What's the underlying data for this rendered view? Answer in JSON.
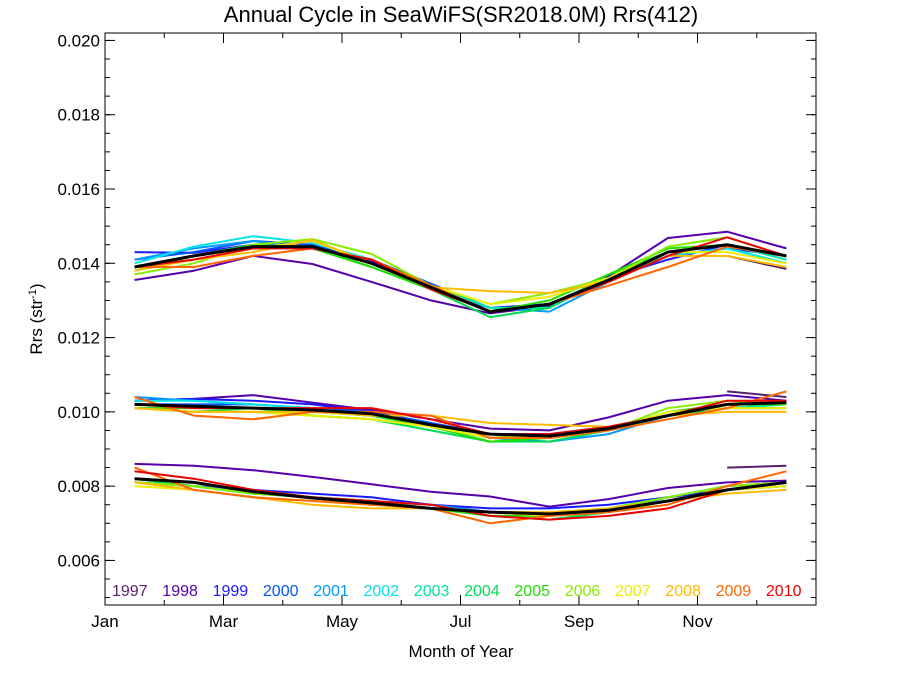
{
  "chart_data": {
    "type": "line",
    "title": "Annual Cycle in SeaWiFS(SR2018.0M) Rrs(412)",
    "xlabel": "Month of Year",
    "ylabel": "Rrs (str",
    "ylabel_sup": "-1",
    "ylabel_close": ")",
    "xlim": [
      1,
      13
    ],
    "ylim": [
      0.0048,
      0.0202
    ],
    "x_ticks": [
      {
        "value": 1,
        "label": "Jan"
      },
      {
        "value": 3,
        "label": "Mar"
      },
      {
        "value": 5,
        "label": "May"
      },
      {
        "value": 7,
        "label": "Jul"
      },
      {
        "value": 9,
        "label": "Sep"
      },
      {
        "value": 11,
        "label": "Nov"
      }
    ],
    "y_ticks": [
      {
        "value": 0.006,
        "label": "0.006"
      },
      {
        "value": 0.008,
        "label": "0.008"
      },
      {
        "value": 0.01,
        "label": "0.010"
      },
      {
        "value": 0.012,
        "label": "0.012"
      },
      {
        "value": 0.014,
        "label": "0.014"
      },
      {
        "value": 0.016,
        "label": "0.016"
      },
      {
        "value": 0.018,
        "label": "0.018"
      },
      {
        "value": 0.02,
        "label": "0.020"
      }
    ],
    "grid": false,
    "legend_position": "bottom-inside",
    "x": [
      1.5,
      2.5,
      3.5,
      4.5,
      5.5,
      6.5,
      7.5,
      8.5,
      9.5,
      10.5,
      11.5,
      12.5
    ],
    "series": [
      {
        "name": "1997",
        "color": "#5a1f6b",
        "groups": [
          [
            null,
            null,
            null,
            null,
            null,
            null,
            null,
            null,
            null,
            null,
            0.0142,
            0.01385
          ],
          [
            null,
            null,
            null,
            null,
            null,
            null,
            null,
            null,
            null,
            null,
            0.01055,
            0.0104
          ],
          [
            null,
            null,
            null,
            null,
            null,
            null,
            null,
            null,
            null,
            null,
            0.0085,
            0.00855
          ]
        ]
      },
      {
        "name": "1998",
        "color": "#5500aa",
        "groups": [
          [
            0.01355,
            0.0138,
            0.0142,
            0.01398,
            0.0135,
            0.013,
            0.01265,
            0.01285,
            0.01365,
            0.01468,
            0.01485,
            0.0144
          ],
          [
            0.0103,
            0.01035,
            0.01045,
            0.01025,
            0.01005,
            0.0098,
            0.00955,
            0.0095,
            0.00985,
            0.0103,
            0.01045,
            0.0103
          ],
          [
            0.0086,
            0.00855,
            0.00843,
            0.00825,
            0.00805,
            0.00785,
            0.00772,
            0.00745,
            0.00765,
            0.00795,
            0.0081,
            0.00815
          ]
        ]
      },
      {
        "name": "1999",
        "color": "#1a1aff",
        "groups": [
          [
            0.0143,
            0.01428,
            0.0145,
            0.01445,
            0.01405,
            0.0133,
            0.0128,
            0.0129,
            0.0136,
            0.0141,
            0.0145,
            0.0142
          ],
          [
            0.0103,
            0.01035,
            0.0103,
            0.0102,
            0.01,
            0.0097,
            0.0094,
            0.0094,
            0.0096,
            0.0099,
            0.0102,
            0.0102
          ],
          [
            0.0082,
            0.008,
            0.0079,
            0.0078,
            0.0077,
            0.0075,
            0.0074,
            0.0074,
            0.0075,
            0.0077,
            0.0079,
            0.008
          ]
        ]
      },
      {
        "name": "2000",
        "color": "#0055ff",
        "groups": [
          [
            0.0141,
            0.0143,
            0.0146,
            0.0145,
            0.0141,
            0.01345,
            0.0128,
            0.0128,
            0.0136,
            0.0142,
            0.0144,
            0.0142
          ],
          [
            0.0102,
            0.0102,
            0.0102,
            0.0101,
            0.01,
            0.0097,
            0.0094,
            0.0093,
            0.0095,
            0.0099,
            0.0101,
            0.0101
          ],
          [
            0.0081,
            0.008,
            0.0078,
            0.0077,
            0.0076,
            0.0075,
            0.0073,
            0.0072,
            0.0073,
            0.0076,
            0.0079,
            0.0081
          ]
        ]
      },
      {
        "name": "2001",
        "color": "#0099ff",
        "groups": [
          [
            0.0141,
            0.0144,
            0.0146,
            0.0144,
            0.014,
            0.0134,
            0.0128,
            0.0127,
            0.0135,
            0.0142,
            0.0144,
            0.014
          ],
          [
            0.0104,
            0.0103,
            0.0102,
            0.0101,
            0.0099,
            0.0096,
            0.0093,
            0.0092,
            0.0094,
            0.0099,
            0.0101,
            0.0102
          ],
          [
            0.0082,
            0.0081,
            0.0078,
            0.0077,
            0.0076,
            0.0075,
            0.0073,
            0.0072,
            0.0073,
            0.0077,
            0.008,
            0.0081
          ]
        ]
      },
      {
        "name": "2002",
        "color": "#00e5e5",
        "groups": [
          [
            0.014,
            0.01445,
            0.01473,
            0.01455,
            0.0141,
            0.0134,
            0.0128,
            0.0128,
            0.0136,
            0.0142,
            0.0144,
            0.014
          ],
          [
            0.0103,
            0.0103,
            0.0102,
            0.0101,
            0.0099,
            0.0096,
            0.0093,
            0.0093,
            0.0095,
            0.0099,
            0.0101,
            0.0102
          ],
          [
            0.0082,
            0.008,
            0.0078,
            0.0077,
            0.0076,
            0.0074,
            0.0073,
            0.0072,
            0.0073,
            0.0076,
            0.0079,
            0.0081
          ]
        ]
      },
      {
        "name": "2003",
        "color": "#00e5a0",
        "groups": [
          [
            0.0138,
            0.0142,
            0.0145,
            0.0144,
            0.014,
            0.0134,
            0.0128,
            0.0128,
            0.0136,
            0.0143,
            0.0145,
            0.0141
          ],
          [
            0.0101,
            0.0101,
            0.0101,
            0.01,
            0.0099,
            0.0096,
            0.0093,
            0.0093,
            0.0095,
            0.0099,
            0.0101,
            0.0102
          ],
          [
            0.0081,
            0.008,
            0.0078,
            0.0077,
            0.0076,
            0.0074,
            0.0073,
            0.0072,
            0.0073,
            0.0076,
            0.0079,
            0.008
          ]
        ]
      },
      {
        "name": "2004",
        "color": "#00dd55",
        "groups": [
          [
            0.0139,
            0.0141,
            0.0144,
            0.0144,
            0.0139,
            0.0133,
            0.01255,
            0.0128,
            0.0137,
            0.0143,
            0.0145,
            0.0142
          ],
          [
            0.0101,
            0.01,
            0.0101,
            0.0099,
            0.0098,
            0.0095,
            0.0092,
            0.0092,
            0.0095,
            0.0099,
            0.0101,
            0.0101
          ],
          [
            0.0082,
            0.008,
            0.0078,
            0.0077,
            0.0075,
            0.0074,
            0.0072,
            0.0071,
            0.0073,
            0.0076,
            0.0079,
            0.0081
          ]
        ]
      },
      {
        "name": "2005",
        "color": "#22dd00",
        "groups": [
          [
            0.0139,
            0.0142,
            0.0145,
            0.0144,
            0.0139,
            0.0133,
            0.0127,
            0.013,
            0.0137,
            0.0144,
            0.0145,
            0.0142
          ],
          [
            0.0101,
            0.0101,
            0.0101,
            0.01,
            0.0099,
            0.0096,
            0.0092,
            0.0093,
            0.0095,
            0.01,
            0.0102,
            0.0102
          ],
          [
            0.0081,
            0.008,
            0.0078,
            0.0077,
            0.0076,
            0.0074,
            0.0072,
            0.0072,
            0.0074,
            0.0077,
            0.008,
            0.0081
          ]
        ]
      },
      {
        "name": "2006",
        "color": "#88ee00",
        "groups": [
          [
            0.0137,
            0.014,
            0.0145,
            0.01465,
            0.01425,
            0.0134,
            0.0129,
            0.0132,
            0.0136,
            0.01445,
            0.0147,
            0.0142
          ],
          [
            0.0101,
            0.01,
            0.01,
            0.0099,
            0.0098,
            0.0096,
            0.0093,
            0.0094,
            0.0095,
            0.0101,
            0.0103,
            0.0102
          ],
          [
            0.0081,
            0.008,
            0.0078,
            0.0077,
            0.0075,
            0.0074,
            0.0073,
            0.0072,
            0.0074,
            0.0077,
            0.008,
            0.0081
          ]
        ]
      },
      {
        "name": "2007",
        "color": "#eeee00",
        "groups": [
          [
            0.0138,
            0.0141,
            0.0144,
            0.0146,
            0.014,
            0.0134,
            0.0129,
            0.0131,
            0.0136,
            0.0143,
            0.0143,
            0.014
          ],
          [
            0.0101,
            0.01,
            0.01,
            0.0099,
            0.0098,
            0.0096,
            0.0093,
            0.0093,
            0.0095,
            0.01,
            0.0101,
            0.0101
          ],
          [
            0.008,
            0.0079,
            0.0077,
            0.0076,
            0.0075,
            0.0074,
            0.0073,
            0.0072,
            0.0073,
            0.0076,
            0.0079,
            0.008
          ]
        ]
      },
      {
        "name": "2008",
        "color": "#ffbb00",
        "groups": [
          [
            0.0138,
            0.0141,
            0.0143,
            0.01463,
            0.014,
            0.01335,
            0.01325,
            0.0132,
            0.0135,
            0.0142,
            0.0142,
            0.0139
          ],
          [
            0.0101,
            0.01,
            0.01,
            0.01,
            0.0099,
            0.0099,
            0.0097,
            0.00965,
            0.0096,
            0.0099,
            0.01,
            0.01
          ],
          [
            0.0081,
            0.0079,
            0.0077,
            0.0075,
            0.0074,
            0.0074,
            0.0073,
            0.0073,
            0.0074,
            0.0076,
            0.0078,
            0.0079
          ]
        ]
      },
      {
        "name": "2009",
        "color": "#ff6600",
        "groups": [
          [
            0.0139,
            0.0139,
            0.0142,
            0.0144,
            0.0141,
            0.0134,
            0.0127,
            0.0129,
            0.0134,
            0.0139,
            0.01445,
            0.0142
          ],
          [
            0.0104,
            0.0099,
            0.0098,
            0.01,
            0.01,
            0.0099,
            0.0093,
            0.0093,
            0.0095,
            0.0098,
            0.0101,
            0.01055
          ],
          [
            0.0085,
            0.0079,
            0.0077,
            0.0076,
            0.0075,
            0.0074,
            0.007,
            0.0072,
            0.0073,
            0.0075,
            0.008,
            0.0084
          ]
        ]
      },
      {
        "name": "2010",
        "color": "#ee0000",
        "groups": [
          [
            0.0139,
            0.0141,
            0.0144,
            0.0144,
            0.0141,
            0.0133,
            0.0127,
            0.0129,
            0.0135,
            0.0142,
            0.0147,
            0.0142
          ],
          [
            0.0102,
            0.0101,
            0.0101,
            0.0101,
            0.0101,
            0.0098,
            0.0094,
            0.0094,
            0.0096,
            0.0099,
            0.0103,
            0.0103
          ],
          [
            0.0084,
            0.0082,
            0.0079,
            0.0077,
            0.0076,
            0.0075,
            0.0072,
            0.0071,
            0.0072,
            0.0074,
            0.0079,
            0.0081
          ]
        ]
      },
      {
        "name": "",
        "color": "#000000",
        "groups": [
          [
            0.0139,
            0.0142,
            0.01445,
            0.01445,
            0.014,
            0.01335,
            0.0127,
            0.0129,
            0.01355,
            0.0143,
            0.0145,
            0.0142
          ],
          [
            0.0102,
            0.01015,
            0.0101,
            0.01005,
            0.00995,
            0.00965,
            0.0094,
            0.00935,
            0.00955,
            0.0099,
            0.0102,
            0.01025
          ],
          [
            0.0082,
            0.0081,
            0.00785,
            0.00768,
            0.00755,
            0.0074,
            0.0073,
            0.00725,
            0.00735,
            0.0076,
            0.0079,
            0.0081
          ]
        ]
      }
    ]
  }
}
